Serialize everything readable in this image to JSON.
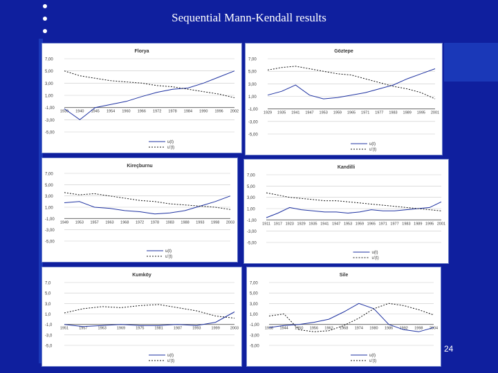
{
  "slide": {
    "title": "Sequential Mann-Kendall results",
    "page_number": "24"
  },
  "chart_data": [
    {
      "type": "line",
      "title": "Florya",
      "ylim": [
        -5,
        7
      ],
      "yticks": [
        "7,00",
        "5,00",
        "3,00",
        "1,00",
        "-1,00",
        "-3,00",
        "-5,00"
      ],
      "ytick_values": [
        7,
        5,
        3,
        1,
        -1,
        -3,
        -5
      ],
      "categories": [
        "1939",
        "1940",
        "1945",
        "1954",
        "1960",
        "1966",
        "1972",
        "1978",
        "1984",
        "1990",
        "1996",
        "2002"
      ],
      "series": [
        {
          "name": "u(t)",
          "style": "solid",
          "values": [
            -1.2,
            -3.0,
            -1.0,
            -0.5,
            0.0,
            0.8,
            1.5,
            2.0,
            2.2,
            3.0,
            4.0,
            5.0
          ]
        },
        {
          "name": "u'(t)",
          "style": "dashed",
          "values": [
            5.0,
            4.2,
            3.8,
            3.4,
            3.2,
            3.0,
            2.6,
            2.4,
            2.0,
            1.6,
            1.2,
            0.6
          ]
        }
      ]
    },
    {
      "type": "line",
      "title": "Göztepe",
      "ylim": [
        -5,
        7
      ],
      "yticks": [
        "7,00",
        "5,00",
        "3,00",
        "1,00",
        "-1,00",
        "-3,00",
        "-5,00"
      ],
      "ytick_values": [
        7,
        5,
        3,
        1,
        -1,
        -3,
        -5
      ],
      "categories": [
        "1929",
        "1935",
        "1941",
        "1947",
        "1953",
        "1959",
        "1965",
        "1971",
        "1977",
        "1983",
        "1989",
        "1995",
        "2001"
      ],
      "series": [
        {
          "name": "u(t)",
          "style": "solid",
          "values": [
            1.2,
            1.8,
            2.8,
            1.2,
            0.6,
            0.8,
            1.2,
            1.6,
            2.2,
            2.8,
            3.8,
            4.6,
            5.4
          ]
        },
        {
          "name": "u'(t)",
          "style": "dashed",
          "values": [
            5.2,
            5.6,
            5.8,
            5.4,
            5.0,
            4.6,
            4.4,
            3.8,
            3.2,
            2.6,
            2.2,
            1.6,
            0.6
          ]
        }
      ]
    },
    {
      "type": "line",
      "title": "Kireçburnu",
      "ylim": [
        -5,
        7
      ],
      "yticks": [
        "7,00",
        "5,00",
        "3,00",
        "1,00",
        "-1,00",
        "-3,00",
        "-5,00"
      ],
      "ytick_values": [
        7,
        5,
        3,
        1,
        -1,
        -3,
        -5
      ],
      "categories": [
        "1949",
        "1953",
        "1957",
        "1963",
        "1968",
        "1972",
        "1978",
        "1983",
        "1988",
        "1993",
        "1998",
        "2003"
      ],
      "series": [
        {
          "name": "u(t)",
          "style": "solid",
          "values": [
            1.8,
            2.0,
            1.0,
            0.8,
            0.4,
            0.2,
            -0.2,
            0.0,
            0.4,
            1.2,
            2.0,
            3.0
          ]
        },
        {
          "name": "u'(t)",
          "style": "dashed",
          "values": [
            3.6,
            3.2,
            3.4,
            3.0,
            2.6,
            2.2,
            2.0,
            1.6,
            1.4,
            1.2,
            1.0,
            0.6
          ]
        }
      ]
    },
    {
      "type": "line",
      "title": "Kandilli",
      "ylim": [
        -5,
        7
      ],
      "yticks": [
        "7,00",
        "5,00",
        "3,00",
        "1,00",
        "-1,00",
        "-3,00",
        "-5,00"
      ],
      "ytick_values": [
        7,
        5,
        3,
        1,
        -1,
        -3,
        -5
      ],
      "categories": [
        "1911",
        "1917",
        "1923",
        "1929",
        "1935",
        "1941",
        "1947",
        "1953",
        "1959",
        "1965",
        "1971",
        "1977",
        "1983",
        "1989",
        "1995",
        "2001"
      ],
      "series": [
        {
          "name": "u(t)",
          "style": "solid",
          "values": [
            -0.6,
            0.2,
            1.2,
            0.8,
            0.6,
            0.4,
            0.4,
            0.2,
            0.4,
            0.8,
            0.6,
            0.6,
            0.8,
            1.0,
            1.2,
            2.2
          ]
        },
        {
          "name": "u'(t)",
          "style": "dashed",
          "values": [
            3.8,
            3.4,
            3.0,
            2.8,
            2.6,
            2.4,
            2.4,
            2.2,
            2.0,
            1.8,
            1.6,
            1.4,
            1.2,
            1.0,
            0.8,
            0.6
          ]
        }
      ]
    },
    {
      "type": "line",
      "title": "Kumköy",
      "ylim": [
        -5,
        7
      ],
      "yticks": [
        "7,0",
        "5,0",
        "3,0",
        "1,0",
        "-1,0",
        "-3,0",
        "-5,0"
      ],
      "ytick_values": [
        7,
        5,
        3,
        1,
        -1,
        -3,
        -5
      ],
      "categories": [
        "1951",
        "1957",
        "1963",
        "1969",
        "1975",
        "1981",
        "1987",
        "1993",
        "1999",
        "2003"
      ],
      "series": [
        {
          "name": "u(t)",
          "style": "solid",
          "values": [
            -1.0,
            -1.4,
            -1.2,
            -1.0,
            -1.2,
            -1.2,
            -1.0,
            -1.2,
            -0.6,
            1.4
          ]
        },
        {
          "name": "u'(t)",
          "style": "dashed",
          "values": [
            1.2,
            2.0,
            2.4,
            2.2,
            2.6,
            2.8,
            2.2,
            1.6,
            0.6,
            0.2
          ]
        }
      ]
    },
    {
      "type": "line",
      "title": "Sile",
      "ylim": [
        -5,
        7
      ],
      "yticks": [
        "7,00",
        "5,00",
        "3,00",
        "1,00",
        "-1,00",
        "-3,00",
        "-5,00"
      ],
      "ytick_values": [
        7,
        5,
        3,
        1,
        -1,
        -3,
        -5
      ],
      "categories": [
        "1938",
        "1944",
        "1950",
        "1956",
        "1962",
        "1968",
        "1974",
        "1980",
        "1986",
        "1992",
        "1998",
        "2004"
      ],
      "series": [
        {
          "name": "u(t)",
          "style": "solid",
          "values": [
            -1.6,
            -1.2,
            -1.0,
            -0.6,
            0.0,
            1.4,
            3.0,
            2.0,
            -1.0,
            -2.0,
            -2.4,
            -1.6
          ]
        },
        {
          "name": "u'(t)",
          "style": "dashed",
          "values": [
            0.6,
            1.0,
            -2.0,
            -2.4,
            -2.2,
            -1.2,
            0.2,
            2.0,
            3.0,
            2.6,
            1.8,
            0.8
          ]
        }
      ]
    }
  ]
}
